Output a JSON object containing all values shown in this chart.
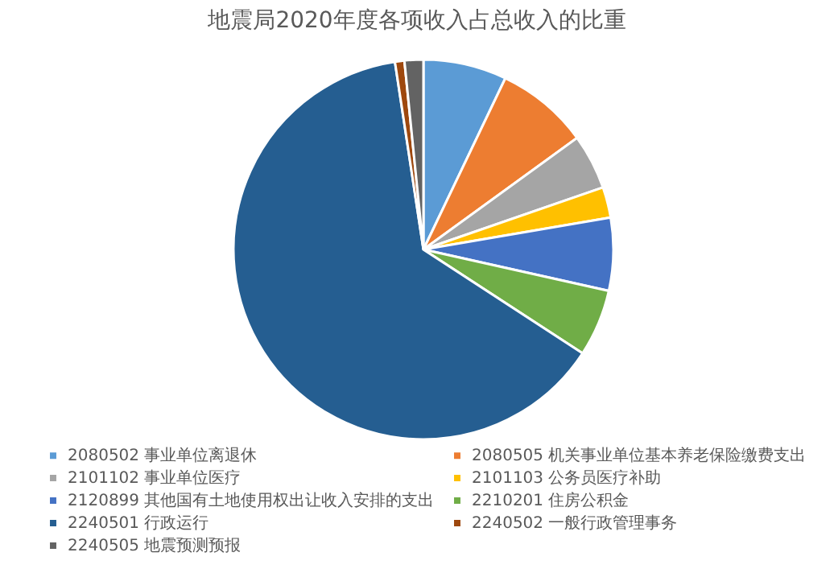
{
  "chart_data": {
    "type": "pie",
    "title": "地震局2020年度各项收入占总收入的比重",
    "categories": [
      "2080502 事业单位离退休",
      "2080505 机关事业单位基本养老保险缴费支出",
      "2101102 事业单位医疗",
      "2101103 公务员医疗补助",
      "2120899 其他国有土地使用权出让收入安排的支出",
      "2210201 住房公积金",
      "2240501 行政运行",
      "2240502 一般行政管理事务",
      "2240505 地震预测预报"
    ],
    "values": [
      7.1,
      7.9,
      4.7,
      2.6,
      6.2,
      5.7,
      63.4,
      0.8,
      1.6
    ],
    "colors": [
      "#5b9bd5",
      "#ed7d31",
      "#a5a5a5",
      "#ffc000",
      "#4472c4",
      "#70ad47",
      "#255e91",
      "#9e480e",
      "#636363"
    ],
    "legend": "bottom"
  }
}
